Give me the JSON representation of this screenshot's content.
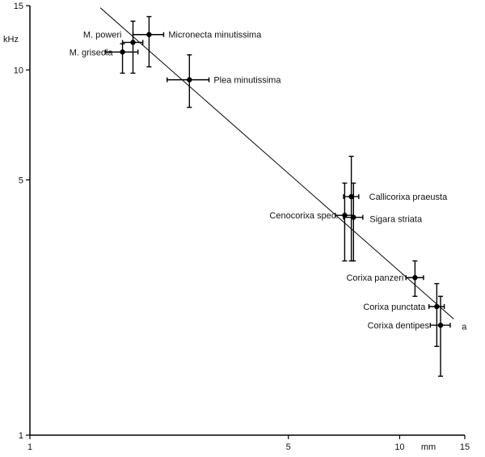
{
  "chart_data": {
    "type": "scatter",
    "title": "",
    "xlabel": "mm",
    "ylabel": "kHz",
    "xscale": "log",
    "yscale": "log",
    "xlim": [
      1,
      15
    ],
    "ylim": [
      1,
      15
    ],
    "x_ticks": [
      {
        "value": 1,
        "label": "1"
      },
      {
        "value": 5,
        "label": "5"
      },
      {
        "value": 10,
        "label": "10"
      },
      {
        "value": 15,
        "label": "15"
      }
    ],
    "y_ticks": [
      {
        "value": 1,
        "label": "1"
      },
      {
        "value": 5,
        "label": "5"
      },
      {
        "value": 10,
        "label": "10"
      },
      {
        "value": 15,
        "label": "15"
      }
    ],
    "points": [
      {
        "name": "M. poweri",
        "x": 1.9,
        "y": 11.9,
        "xerr": 0.12,
        "y_low": 9.8,
        "y_high": 13.6
      },
      {
        "name": "M. griseola",
        "x": 1.78,
        "y": 11.2,
        "xerr": 0.18,
        "y_low": 9.8,
        "y_high": 11.8
      },
      {
        "name": "Micronecta minutissima",
        "x": 2.1,
        "y": 12.5,
        "xerr": 0.2,
        "y_low": 10.2,
        "y_high": 14.0
      },
      {
        "name": "Plea minutissima",
        "x": 2.7,
        "y": 9.4,
        "xerr": 0.35,
        "y_low": 7.9,
        "y_high": 11.0
      },
      {
        "name": "Callicorixa praeusta",
        "x": 7.4,
        "y": 4.5,
        "xerr": 0.35,
        "y_low": 3.0,
        "y_high": 5.8
      },
      {
        "name": "Cenocorixa spec.",
        "x": 7.1,
        "y": 4.0,
        "xerr": 0.4,
        "y_low": 3.0,
        "y_high": 4.9
      },
      {
        "name": "Sigara striata",
        "x": 7.5,
        "y": 3.95,
        "xerr": 0.45,
        "y_low": 3.0,
        "y_high": 4.9
      },
      {
        "name": "Corixa panzeri",
        "x": 11.0,
        "y": 2.7,
        "xerr": 0.6,
        "y_low": 2.4,
        "y_high": 3.0
      },
      {
        "name": "Corixa punctata",
        "x": 12.6,
        "y": 2.25,
        "xerr": 0.6,
        "y_low": 1.75,
        "y_high": 2.6
      },
      {
        "name": "Corixa dentipes",
        "x": 12.9,
        "y": 2.0,
        "xerr": 0.8,
        "y_low": 1.45,
        "y_high": 2.4
      }
    ],
    "regression_line": {
      "label": "a",
      "x_start": 1.55,
      "y_start": 14.8,
      "x_end": 14.0,
      "y_end": 2.08
    }
  }
}
